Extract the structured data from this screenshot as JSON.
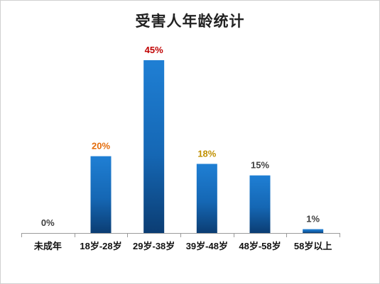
{
  "chart_data": {
    "type": "bar",
    "title": "受害人年龄统计",
    "categories": [
      "未成年",
      "18岁-28岁",
      "29岁-38岁",
      "39岁-48岁",
      "48岁-58岁",
      "58岁以上"
    ],
    "values": [
      0,
      20,
      45,
      18,
      15,
      1
    ],
    "value_labels": [
      "0%",
      "20%",
      "45%",
      "18%",
      "15%",
      "1%"
    ],
    "label_colors": [
      "#404040",
      "#e46c0a",
      "#c00000",
      "#c09000",
      "#404040",
      "#404040"
    ],
    "bar_color_top": "#1f7fd4",
    "bar_color_bottom": "#0b3d73",
    "xlabel": "",
    "ylabel": "",
    "ylim": [
      0,
      45
    ],
    "grid": false,
    "legend": "none"
  }
}
